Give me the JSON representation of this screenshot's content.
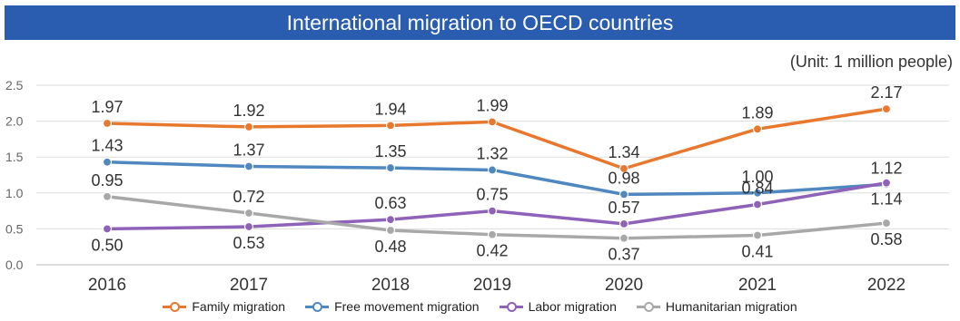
{
  "chart_data": {
    "type": "line",
    "title": "International migration to OECD countries",
    "unit_note": "(Unit: 1 million people)",
    "categories": [
      "2016",
      "2017",
      "2018",
      "2019",
      "2020",
      "2021",
      "2022"
    ],
    "ylim": [
      0,
      2.5
    ],
    "yticks": [
      "0.0",
      "0.5",
      "1.0",
      "1.5",
      "2.0",
      "2.5"
    ],
    "grid": true,
    "legend_position": "bottom",
    "series": [
      {
        "name": "Family migration",
        "color": "#e8782e",
        "values": [
          1.97,
          1.92,
          1.94,
          1.99,
          1.34,
          1.89,
          2.17
        ],
        "labels": [
          "1.97",
          "1.92",
          "1.94",
          "1.99",
          "1.34",
          "1.89",
          "2.17"
        ]
      },
      {
        "name": "Free movement migration",
        "color": "#4f88c0",
        "values": [
          1.43,
          1.37,
          1.35,
          1.32,
          0.98,
          1.0,
          1.12
        ],
        "labels": [
          "1.43",
          "1.37",
          "1.35",
          "1.32",
          "0.98",
          "1.00",
          "1.12"
        ]
      },
      {
        "name": "Labor migration",
        "color": "#8e62b8",
        "values": [
          0.5,
          0.53,
          0.63,
          0.75,
          0.57,
          0.84,
          1.14
        ],
        "labels": [
          "0.50",
          "0.53",
          "0.63",
          "0.75",
          "0.57",
          "0.84",
          "1.14"
        ]
      },
      {
        "name": "Humanitarian migration",
        "color": "#a8a8a8",
        "values": [
          0.95,
          0.72,
          0.48,
          0.42,
          0.37,
          0.41,
          0.58
        ],
        "labels": [
          "0.95",
          "0.72",
          "0.48",
          "0.42",
          "0.37",
          "0.41",
          "0.58"
        ]
      }
    ]
  }
}
